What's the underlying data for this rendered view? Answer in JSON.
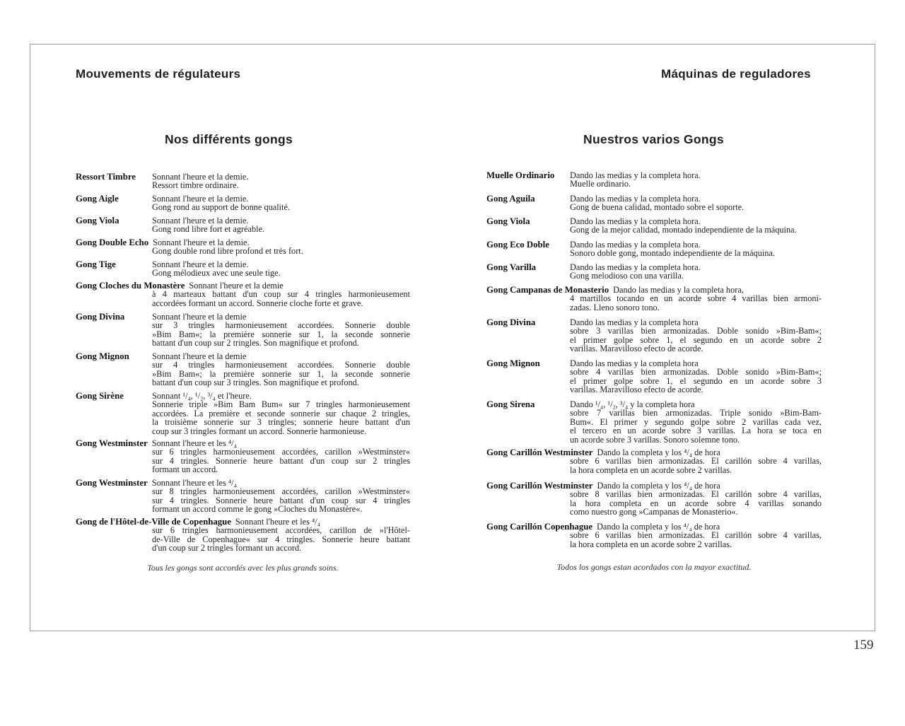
{
  "left": {
    "running_head": "Mouvements de régulateurs",
    "title": "Nos différents gongs",
    "entries": [
      {
        "name": "Ressort Timbre",
        "first": "Sonnant l'heure et la demie.",
        "lines": [
          "Ressort timbre ordinaire."
        ]
      },
      {
        "name": "Gong Aigle",
        "first": "Sonnant l'heure et la demie.",
        "lines": [
          "Gong rond au support de bonne qualité."
        ]
      },
      {
        "name": "Gong Viola",
        "first": "Sonnant l'heure et la demie.",
        "lines": [
          "Gong rond libre fort et agréable."
        ]
      },
      {
        "name": "Gong Double Echo",
        "first": "Sonnant l'heure et la demie.",
        "lines": [
          "Gong double rond libre profond et très fort."
        ]
      },
      {
        "name": "Gong Tige",
        "first": "Sonnant l'heure et la demie.",
        "lines": [
          "Gong mélodieux avec une seule tige."
        ]
      },
      {
        "name": "Gong Cloches du Monastère",
        "first": "Sonnant l'heure et la demie",
        "lines": [
          "à 4 marteaux battant d'un coup sur 4 tringles harmonieusement",
          "accordées formant un accord.  Sonnerie cloche forte et grave."
        ]
      },
      {
        "name": "Gong Divina",
        "first": "Sonnant l'heure et la demie",
        "lines": [
          "sur 3 tringles harmonieusement accordées. Sonnerie double",
          "»Bim Bam«; la première sonnerie sur 1, la seconde sonnerie",
          "battant d'un coup sur 2 tringles.  Son magnifique et profond."
        ]
      },
      {
        "name": "Gong Mignon",
        "first": "Sonnant l'heure et la demie",
        "lines": [
          "sur 4 tringles harmonieusement accordées.  Sonnerie double",
          "»Bim Bam«; la première sonnerie sur 1, la seconde sonnerie",
          "battant d'un coup sur 3 tringles.  Son magnifique et profond."
        ]
      },
      {
        "name": "Gong Sirène",
        "first": "Sonnant ¹/₄, ¹/₂, ³/₄ et l'heure.",
        "lines": [
          "Sonnerie triple »Bim Bam Bum« sur 7 tringles harmonieusement",
          "accordées. La première et seconde sonnerie sur chaque 2 tringles,",
          "la troisième sonnerie sur 3 tringles; sonnerie heure battant d'un",
          "coup sur 3 tringles formant un accord.  Sonnerie harmonieuse."
        ]
      },
      {
        "name": "Gong Westminster",
        "first": "Sonnant l'heure et les ⁴/₄",
        "lines": [
          "sur 6 tringles harmonieusement accordées, carillon »Westminster«",
          "sur 4 tringles.  Sonnerie heure battant d'un coup sur 2 tringles",
          "formant un accord."
        ]
      },
      {
        "name": "Gong Westminster",
        "first": "Sonnant l'heure et les ⁴/₄",
        "lines": [
          "sur 8 tringles harmonieusement accordées, carillon »Westminster«",
          "sur 4 tringles.  Sonnerie heure battant d'un coup sur 4 tringles",
          "formant un accord comme le gong »Cloches du Monastère«."
        ]
      },
      {
        "name": "Gong de l'Hôtel-de-Ville de Copenhague",
        "first": "Sonnant l'heure et les ⁴/₄",
        "lines": [
          "sur 6 tringles harmonieusement accordées, carillon de »l'Hôtel-",
          "de-Ville de Copenhague« sur 4 tringles. Sonnerie heure battant",
          "d'un coup sur 2 tringles formant un accord."
        ]
      }
    ],
    "note": "Tous les gongs sont accordés avec les plus grands soins."
  },
  "right": {
    "running_head": "Máquinas de reguladores",
    "title": "Nuestros varios Gongs",
    "entries": [
      {
        "name": "Muelle Ordinario",
        "first": "Dando las medias y la completa hora.",
        "lines": [
          "Muelle ordinario."
        ]
      },
      {
        "name": "Gong Aguila",
        "first": "Dando las medias y la completa hora.",
        "lines": [
          "Gong de buena calidad, montado sobre el soporte."
        ]
      },
      {
        "name": "Gong Viola",
        "first": "Dando las medias y la completa hora.",
        "lines": [
          "Gong de la mejor calidad, montado independiente de la máquina."
        ]
      },
      {
        "name": "Gong Eco Doble",
        "first": "Dando las medias y la completa hora.",
        "lines": [
          "Sonoro doble gong, montado independiente de la máquina."
        ]
      },
      {
        "name": "Gong Varilla",
        "first": "Dando las medias y la completa hora.",
        "lines": [
          "Gong melodioso con una varilla."
        ]
      },
      {
        "name": "Gong Campanas de Monasterio",
        "first": "Dando las medias y la completa hora,",
        "lines": [
          "4 martillos tocando en un acorde sobre 4 varillas bien armoni-",
          "zadas.  Lleno sonoro tono."
        ]
      },
      {
        "name": "Gong Divina",
        "first": "Dando las medias y la completa hora",
        "lines": [
          "sobre 3 varillas bien armonizadas. Doble sonido »Bim-Bam«;",
          "el primer golpe sobre 1, el segundo en un acorde sobre 2",
          "varillas.  Maravilloso efecto de acorde."
        ]
      },
      {
        "name": "Gong Mignon",
        "first": "Dando las medias y la completa hora",
        "lines": [
          "sobre 4 varillas bien armonizadas. Doble sonido »Bim-Bam«;",
          "el primer golpe sobre 1, el segundo en un acorde sobre 3",
          "varillas.  Maravilloso efecto de acorde."
        ]
      },
      {
        "name": "Gong Sirena",
        "first": "Dando ¹/₄, ¹/₂, ³/₄ y la completa hora",
        "lines": [
          "sobre 7 varillas bien armonizadas. Triple sonido »Bim-Bam-",
          "Bum«. El primer y segundo golpe sobre 2 varillas cada vez,",
          "el tercero en un acorde sobre 3 varillas. La hora se toca en",
          "un acorde sobre 3 varillas.  Sonoro solemne tono."
        ]
      },
      {
        "name": "Gong Carillón Westminster",
        "first": "Dando la completa y los ⁴/₄ de hora",
        "lines": [
          "sobre 6 varillas bien armonizadas. El carillón sobre 4 varillas,",
          "la hora completa en un acorde sobre 2 varillas."
        ]
      },
      {
        "name": "Gong Carillón Westminster",
        "first": "Dando la completa y los ⁴/₄ de hora",
        "lines": [
          "sobre 8 varillas bien armonizadas. El carillón sobre 4 varillas,",
          "la hora completa en un acorde sobre 4 varillas sonando",
          "como nuestro gong »Campanas de Monasterio«."
        ]
      },
      {
        "name": "Gong Carillón Copenhague",
        "first": "Dando la completa y los ⁴/₄ de hora",
        "lines": [
          "sobre 6 varillas bien armonizadas. El carillón sobre 4 varillas,",
          "la hora completa en un acorde sobre 2 varillas."
        ]
      }
    ],
    "note": "Todos los gongs estan acordados con la mayor exactitud."
  },
  "page_number": "159"
}
